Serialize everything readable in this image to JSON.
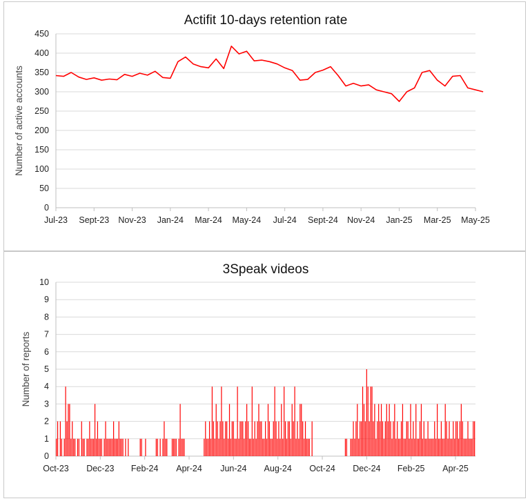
{
  "chart_data": [
    {
      "type": "line",
      "title": "Actifit 10-days retention rate",
      "xlabel": "",
      "ylabel": "Number of active accounts",
      "ylim": [
        0,
        450
      ],
      "y_ticks": [
        0,
        50,
        100,
        150,
        200,
        250,
        300,
        350,
        400,
        450
      ],
      "x_ticks": [
        "Jul-23",
        "Sept-23",
        "Nov-23",
        "Jan-24",
        "Mar-24",
        "May-24",
        "Jul-24",
        "Sept-24",
        "Nov-24",
        "Jan-25",
        "Mar-25",
        "May-25"
      ],
      "grid": "horizontal",
      "color": "#ff0000",
      "series": [
        {
          "x": [
            0.0,
            0.2,
            0.4,
            0.6,
            0.8,
            1.0,
            1.2,
            1.4,
            1.6,
            1.8,
            2.0,
            2.2,
            2.4,
            2.6,
            2.8,
            3.0,
            3.2,
            3.4,
            3.6,
            3.8,
            4.0,
            4.2,
            4.4,
            4.6,
            4.8,
            5.0,
            5.2,
            5.4,
            5.6,
            5.8,
            6.0,
            6.2,
            6.4,
            6.6,
            6.8,
            7.0,
            7.2,
            7.4,
            7.6,
            7.8,
            8.0,
            8.2,
            8.4,
            8.6,
            8.8,
            9.0,
            9.2,
            9.4,
            9.6,
            9.8,
            10.0,
            10.2,
            10.4,
            10.6,
            10.8,
            11.0,
            11.2
          ],
          "values": [
            342,
            340,
            350,
            338,
            332,
            336,
            330,
            333,
            331,
            345,
            340,
            348,
            343,
            353,
            337,
            335,
            378,
            390,
            372,
            365,
            362,
            385,
            360,
            418,
            398,
            405,
            380,
            382,
            378,
            372,
            362,
            355,
            330,
            332,
            350,
            356,
            365,
            342,
            315,
            322,
            315,
            318,
            305,
            300,
            295,
            275,
            300,
            310,
            350,
            355,
            330,
            315,
            340,
            342,
            310,
            305,
            300
          ]
        }
      ]
    },
    {
      "type": "bar",
      "title": "3Speak videos",
      "xlabel": "",
      "ylabel": "Number of reports",
      "ylim": [
        0,
        10
      ],
      "y_ticks": [
        0,
        1,
        2,
        3,
        4,
        5,
        6,
        7,
        8,
        9,
        10
      ],
      "x_ticks": [
        "Oct-23",
        "Dec-23",
        "Feb-24",
        "Apr-24",
        "Jun-24",
        "Aug-24",
        "Oct-24",
        "Dec-24",
        "Feb-25",
        "Apr-25"
      ],
      "grid": "horizontal",
      "color": "#ff0000",
      "series": [
        {
          "name": "",
          "values": [
            1,
            2,
            0,
            2,
            1,
            0,
            1,
            4,
            2,
            3,
            3,
            1,
            2,
            1,
            1,
            0,
            1,
            1,
            0,
            2,
            1,
            1,
            0,
            1,
            1,
            2,
            1,
            1,
            1,
            3,
            1,
            2,
            1,
            1,
            1,
            0,
            1,
            2,
            1,
            1,
            1,
            1,
            1,
            2,
            1,
            1,
            1,
            2,
            1,
            1,
            1,
            0,
            1,
            0,
            1,
            0,
            0,
            0,
            0,
            0,
            0,
            0,
            0,
            1,
            1,
            0,
            0,
            1,
            0,
            0,
            0,
            0,
            0,
            0,
            0,
            1,
            1,
            0,
            1,
            0,
            1,
            2,
            1,
            1,
            0,
            0,
            0,
            1,
            1,
            1,
            1,
            0,
            1,
            3,
            1,
            1,
            1,
            0,
            0,
            0,
            0,
            0,
            0,
            0,
            0,
            0,
            0,
            0,
            0,
            0,
            0,
            1,
            2,
            1,
            1,
            2,
            1,
            4,
            2,
            1,
            3,
            2,
            1,
            2,
            4,
            2,
            1,
            2,
            2,
            1,
            3,
            1,
            2,
            2,
            1,
            1,
            4,
            1,
            2,
            2,
            2,
            1,
            2,
            3,
            2,
            1,
            1,
            4,
            1,
            2,
            1,
            2,
            3,
            2,
            2,
            1,
            1,
            2,
            1,
            3,
            2,
            1,
            1,
            2,
            4,
            2,
            1,
            2,
            1,
            3,
            1,
            4,
            2,
            1,
            2,
            2,
            1,
            3,
            2,
            4,
            1,
            2,
            1,
            3,
            3,
            2,
            1,
            2,
            1,
            1,
            1,
            0,
            2,
            0,
            0,
            0,
            0,
            0,
            0,
            0,
            0,
            0,
            0,
            0,
            0,
            0,
            0,
            0,
            0,
            0,
            0,
            0,
            0,
            0,
            0,
            0,
            0,
            1,
            1,
            0,
            0,
            1,
            1,
            2,
            1,
            2,
            3,
            1,
            2,
            2,
            4,
            3,
            2,
            5,
            4,
            2,
            4,
            4,
            2,
            3,
            1,
            2,
            3,
            2,
            3,
            2,
            1,
            2,
            3,
            2,
            3,
            2,
            1,
            2,
            3,
            1,
            2,
            1,
            1,
            2,
            3,
            1,
            1,
            2,
            2,
            1,
            3,
            1,
            2,
            1,
            3,
            1,
            1,
            2,
            3,
            1,
            2,
            1,
            1,
            2,
            1,
            1,
            1,
            1,
            2,
            1,
            3,
            1,
            1,
            2,
            1,
            1,
            3,
            2,
            1,
            2,
            1,
            1,
            2,
            1,
            2,
            2,
            1,
            2,
            3,
            2,
            1,
            1,
            1,
            2,
            1,
            1,
            1,
            2,
            2
          ]
        }
      ]
    }
  ]
}
